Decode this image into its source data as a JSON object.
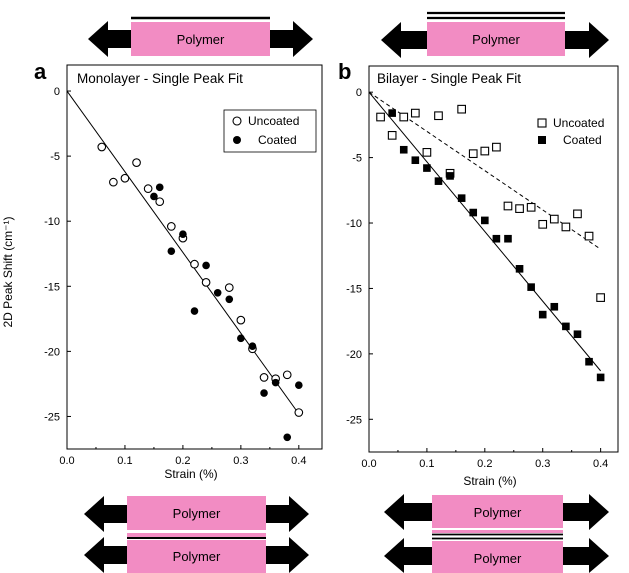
{
  "colors": {
    "polymer_fill": "#f28cc3",
    "arrow": "#000000",
    "axis": "#000000"
  },
  "polymer_label": "Polymer",
  "panels": {
    "a": {
      "letter": "a",
      "title": "Monolayer - Single Peak Fit",
      "xlabel": "Strain (%)",
      "ylabel": "2D Peak Shift (cm⁻¹)",
      "legend_uncoated": "Uncoated",
      "legend_coated": "Coated"
    },
    "b": {
      "letter": "b",
      "title": "Bilayer - Single Peak Fit",
      "xlabel": "Strain (%)",
      "legend_uncoated": "Uncoated",
      "legend_coated": "Coated"
    }
  },
  "chart_data": [
    {
      "type": "scatter",
      "panel": "a",
      "title": "Monolayer - Single Peak Fit",
      "xlabel": "Strain (%)",
      "ylabel": "2D Peak Shift (cm⁻¹)",
      "xlim": [
        0.0,
        0.44
      ],
      "ylim": [
        -27.5,
        2.0
      ],
      "xticks": [
        "0.0",
        "0.1",
        "0.2",
        "0.3",
        "0.4"
      ],
      "yticks": [
        "0",
        "-5",
        "-10",
        "-15",
        "-20",
        "-25"
      ],
      "legend_position": "top-right",
      "series": [
        {
          "name": "Uncoated",
          "marker": "open-circle",
          "points": [
            [
              0.06,
              -4.3
            ],
            [
              0.08,
              -7.0
            ],
            [
              0.1,
              -6.7
            ],
            [
              0.12,
              -5.5
            ],
            [
              0.14,
              -7.5
            ],
            [
              0.16,
              -8.5
            ],
            [
              0.18,
              -10.4
            ],
            [
              0.2,
              -11.3
            ],
            [
              0.22,
              -13.3
            ],
            [
              0.24,
              -14.7
            ],
            [
              0.28,
              -15.1
            ],
            [
              0.3,
              -17.6
            ],
            [
              0.32,
              -19.8
            ],
            [
              0.34,
              -22.0
            ],
            [
              0.36,
              -22.1
            ],
            [
              0.38,
              -21.8
            ],
            [
              0.4,
              -24.7
            ]
          ]
        },
        {
          "name": "Coated",
          "marker": "filled-circle",
          "points": [
            [
              0.15,
              -8.1
            ],
            [
              0.16,
              -7.4
            ],
            [
              0.18,
              -12.3
            ],
            [
              0.2,
              -11.0
            ],
            [
              0.22,
              -16.9
            ],
            [
              0.24,
              -13.4
            ],
            [
              0.26,
              -15.5
            ],
            [
              0.28,
              -16.0
            ],
            [
              0.3,
              -19.0
            ],
            [
              0.32,
              -19.6
            ],
            [
              0.34,
              -23.2
            ],
            [
              0.36,
              -22.4
            ],
            [
              0.38,
              -26.6
            ],
            [
              0.4,
              -22.6
            ]
          ]
        }
      ],
      "fits": [
        {
          "series": "all",
          "style": "solid",
          "line": [
            [
              0.0,
              0.0
            ],
            [
              0.4,
              -24.8
            ]
          ]
        }
      ]
    },
    {
      "type": "scatter",
      "panel": "b",
      "title": "Bilayer - Single Peak Fit",
      "xlabel": "Strain (%)",
      "xlim": [
        0.0,
        0.43
      ],
      "ylim": [
        -27.5,
        2.0
      ],
      "xticks": [
        "0.0",
        "0.1",
        "0.2",
        "0.3",
        "0.4"
      ],
      "yticks": [
        "0",
        "-5",
        "-10",
        "-15",
        "-20",
        "-25"
      ],
      "legend_position": "top-right",
      "series": [
        {
          "name": "Uncoated",
          "marker": "open-square",
          "points": [
            [
              0.02,
              -1.9
            ],
            [
              0.04,
              -3.3
            ],
            [
              0.06,
              -1.9
            ],
            [
              0.08,
              -1.6
            ],
            [
              0.1,
              -4.6
            ],
            [
              0.12,
              -1.8
            ],
            [
              0.14,
              -6.2
            ],
            [
              0.16,
              -1.3
            ],
            [
              0.18,
              -4.7
            ],
            [
              0.2,
              -4.5
            ],
            [
              0.22,
              -4.2
            ],
            [
              0.24,
              -8.7
            ],
            [
              0.26,
              -8.9
            ],
            [
              0.28,
              -8.8
            ],
            [
              0.3,
              -10.1
            ],
            [
              0.32,
              -9.7
            ],
            [
              0.34,
              -10.3
            ],
            [
              0.36,
              -9.3
            ],
            [
              0.38,
              -11.0
            ],
            [
              0.4,
              -15.7
            ]
          ]
        },
        {
          "name": "Coated",
          "marker": "filled-square",
          "points": [
            [
              0.04,
              -1.6
            ],
            [
              0.06,
              -4.4
            ],
            [
              0.08,
              -5.2
            ],
            [
              0.1,
              -5.8
            ],
            [
              0.12,
              -6.8
            ],
            [
              0.14,
              -6.4
            ],
            [
              0.16,
              -8.1
            ],
            [
              0.18,
              -9.2
            ],
            [
              0.2,
              -9.8
            ],
            [
              0.22,
              -11.2
            ],
            [
              0.24,
              -11.2
            ],
            [
              0.26,
              -13.5
            ],
            [
              0.28,
              -14.9
            ],
            [
              0.3,
              -17.0
            ],
            [
              0.32,
              -16.4
            ],
            [
              0.34,
              -17.9
            ],
            [
              0.36,
              -18.5
            ],
            [
              0.38,
              -20.6
            ],
            [
              0.4,
              -21.8
            ]
          ]
        }
      ],
      "fits": [
        {
          "series": "Coated",
          "style": "solid",
          "line": [
            [
              0.0,
              0.0
            ],
            [
              0.4,
              -21.3
            ]
          ]
        },
        {
          "series": "Uncoated",
          "style": "dashed",
          "line": [
            [
              0.0,
              0.0
            ],
            [
              0.4,
              -12.0
            ]
          ]
        }
      ]
    }
  ]
}
